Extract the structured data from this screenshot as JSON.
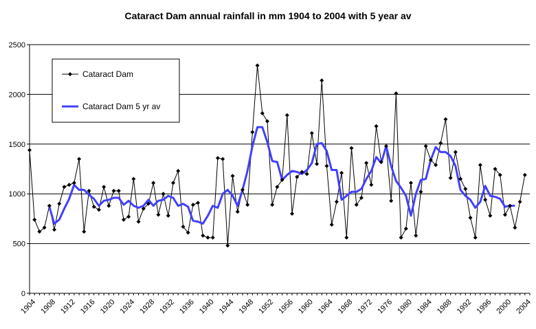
{
  "chart_data": {
    "type": "line",
    "title": "Cataract Dam annual rainfall in mm 1904 to 2004 with 5 year av",
    "xlabel": "",
    "ylabel": "",
    "ylim": [
      0,
      2500
    ],
    "yticks": [
      0,
      500,
      1000,
      1500,
      2000,
      2500
    ],
    "xlim": [
      1904,
      2005
    ],
    "xticks": [
      1904,
      1908,
      1912,
      1916,
      1920,
      1924,
      1928,
      1932,
      1936,
      1940,
      1944,
      1948,
      1952,
      1956,
      1960,
      1964,
      1968,
      1972,
      1976,
      1980,
      1984,
      1988,
      1992,
      1996,
      2000,
      2004
    ],
    "grid": "horizontal",
    "legend_position": "top-left",
    "series": [
      {
        "name": "Cataract Dam",
        "color": "#000000",
        "marker": "diamond",
        "x": [
          1904,
          1905,
          1906,
          1907,
          1908,
          1909,
          1910,
          1911,
          1912,
          1913,
          1914,
          1915,
          1916,
          1917,
          1918,
          1919,
          1920,
          1921,
          1922,
          1923,
          1924,
          1925,
          1926,
          1927,
          1928,
          1929,
          1930,
          1931,
          1932,
          1933,
          1934,
          1935,
          1936,
          1937,
          1938,
          1939,
          1940,
          1941,
          1942,
          1943,
          1944,
          1945,
          1946,
          1947,
          1948,
          1949,
          1950,
          1951,
          1952,
          1953,
          1954,
          1955,
          1956,
          1957,
          1958,
          1959,
          1960,
          1961,
          1962,
          1963,
          1964,
          1965,
          1966,
          1967,
          1968,
          1969,
          1970,
          1971,
          1972,
          1973,
          1974,
          1975,
          1976,
          1977,
          1978,
          1979,
          1980,
          1981,
          1982,
          1983,
          1984,
          1985,
          1986,
          1987,
          1988,
          1989,
          1990,
          1991,
          1992,
          1993,
          1994,
          1995,
          1996,
          1997,
          1998,
          1999,
          2000,
          2001,
          2002,
          2003,
          2004
        ],
        "values": [
          1440,
          740,
          620,
          660,
          880,
          640,
          900,
          1070,
          1090,
          1110,
          1350,
          620,
          1030,
          870,
          840,
          1070,
          880,
          1030,
          1030,
          740,
          770,
          1150,
          720,
          850,
          900,
          1110,
          790,
          1000,
          780,
          1110,
          1230,
          670,
          610,
          890,
          910,
          580,
          560,
          560,
          1360,
          1350,
          480,
          1180,
          820,
          1040,
          890,
          1620,
          2290,
          1810,
          1730,
          890,
          1070,
          1140,
          1790,
          800,
          1170,
          1220,
          1200,
          1610,
          1300,
          2140,
          1280,
          690,
          920,
          1210,
          560,
          1460,
          890,
          960,
          1310,
          1090,
          1680,
          1320,
          1480,
          930,
          2010,
          560,
          650,
          1110,
          580,
          1020,
          1480,
          1340,
          1290,
          1510,
          1750,
          1160,
          1420,
          1150,
          1050,
          760,
          560,
          1290,
          940,
          780,
          1250,
          1190,
          790,
          880,
          660,
          920,
          1190
        ]
      },
      {
        "name": "Cataract Dam 5 yr av",
        "color": "#4040ff",
        "x": [
          1908,
          1909,
          1910,
          1911,
          1912,
          1913,
          1914,
          1915,
          1916,
          1917,
          1918,
          1919,
          1920,
          1921,
          1922,
          1923,
          1924,
          1925,
          1926,
          1927,
          1928,
          1929,
          1930,
          1931,
          1932,
          1933,
          1934,
          1935,
          1936,
          1937,
          1938,
          1939,
          1940,
          1941,
          1942,
          1943,
          1944,
          1945,
          1946,
          1947,
          1948,
          1949,
          1950,
          1951,
          1952,
          1953,
          1954,
          1955,
          1956,
          1957,
          1958,
          1959,
          1960,
          1961,
          1962,
          1963,
          1964,
          1965,
          1966,
          1967,
          1968,
          1969,
          1970,
          1971,
          1972,
          1973,
          1974,
          1975,
          1976,
          1977,
          1978,
          1979,
          1980,
          1981,
          1982,
          1983,
          1984,
          1985,
          1986,
          1987,
          1988,
          1989,
          1990,
          1991,
          1992,
          1993,
          1994,
          1995,
          1996,
          1997,
          1998,
          1999,
          2000,
          2001,
          2002
        ],
        "values": [
          870,
          700,
          740,
          850,
          950,
          1090,
          1040,
          1040,
          990,
          950,
          880,
          930,
          940,
          960,
          960,
          890,
          930,
          880,
          860,
          880,
          940,
          880,
          930,
          940,
          980,
          960,
          880,
          900,
          870,
          730,
          720,
          700,
          780,
          880,
          860,
          1000,
          1040,
          980,
          880,
          1040,
          1230,
          1480,
          1670,
          1670,
          1520,
          1330,
          1320,
          1140,
          1190,
          1230,
          1220,
          1200,
          1240,
          1310,
          1500,
          1510,
          1430,
          1240,
          1240,
          940,
          980,
          1020,
          1020,
          1050,
          1150,
          1230,
          1370,
          1310,
          1480,
          1280,
          1130,
          1060,
          980,
          780,
          1000,
          1140,
          1150,
          1340,
          1470,
          1420,
          1420,
          1380,
          1280,
          1040,
          980,
          940,
          860,
          920,
          1080,
          980,
          970,
          950,
          870,
          880,
          880
        ]
      }
    ]
  }
}
